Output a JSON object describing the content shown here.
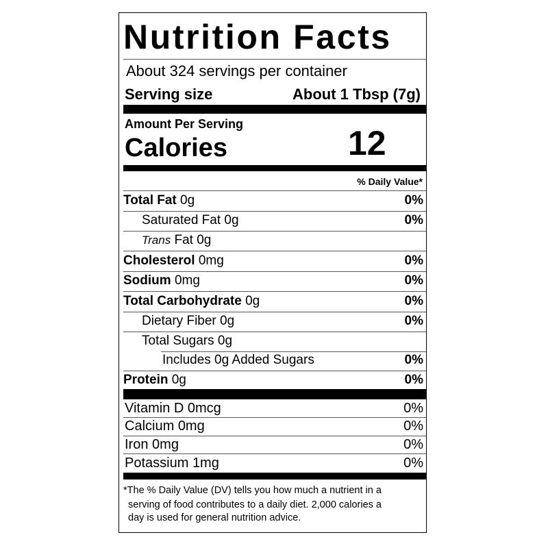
{
  "title": "Nutrition Facts",
  "servings": "About 324 servings per container",
  "serving_size": {
    "label": "Serving size",
    "value": "About 1 Tbsp (7g)"
  },
  "calories": {
    "header": "Amount Per Serving",
    "label": "Calories",
    "value": "12"
  },
  "dv_header": "% Daily Value*",
  "nutrients": [
    {
      "name": "Total Fat",
      "amount": "0g",
      "dv": "0%"
    },
    {
      "name": "Saturated Fat",
      "amount": "0g",
      "dv": "0%"
    },
    {
      "name_italic": "Trans",
      "name": "Fat",
      "amount": "0g"
    },
    {
      "name": "Cholesterol",
      "amount": "0mg",
      "dv": "0%"
    },
    {
      "name": "Sodium",
      "amount": "0mg",
      "dv": "0%"
    },
    {
      "name": "Total Carbohydrate",
      "amount": "0g",
      "dv": "0%"
    },
    {
      "name": "Dietary Fiber",
      "amount": "0g",
      "dv": "0%"
    },
    {
      "name": "Total Sugars",
      "amount": "0g"
    },
    {
      "name": "Includes 0g Added Sugars",
      "dv": "0%"
    },
    {
      "name": "Protein",
      "amount": "0g",
      "dv": "0%"
    }
  ],
  "vitamins": [
    {
      "name": "Vitamin D",
      "amount": "0mcg",
      "dv": "0%"
    },
    {
      "name": "Calcium",
      "amount": "0mg",
      "dv": "0%"
    },
    {
      "name": "Iron",
      "amount": "0mg",
      "dv": "0%"
    },
    {
      "name": "Potassium",
      "amount": "1mg",
      "dv": "0%"
    }
  ],
  "footnote": [
    "*The % Daily Value (DV) tells you how much a nutrient in a",
    "serving of food contributes to a daily diet. 2,000 calories a",
    "day is used for general nutrition advice."
  ]
}
